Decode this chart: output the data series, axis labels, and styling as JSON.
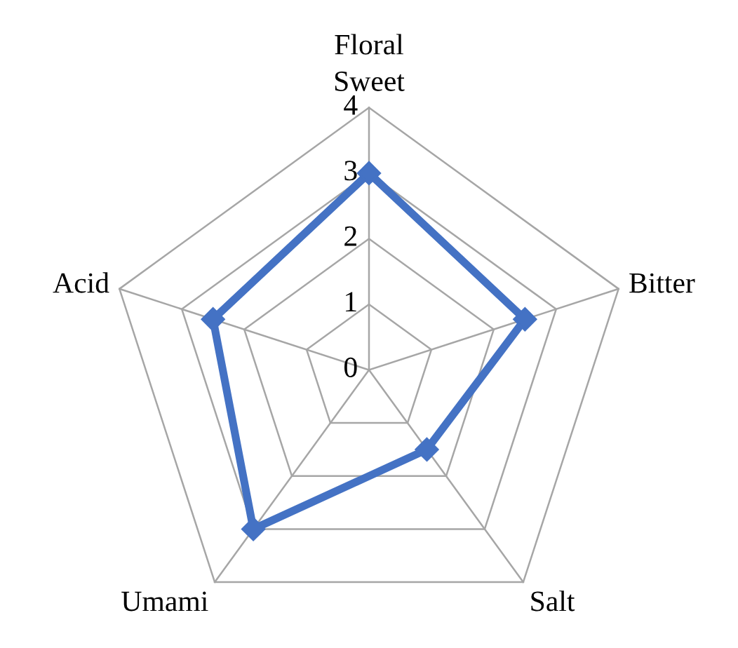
{
  "chart_data": {
    "type": "radar",
    "categories": [
      "Floral\nSweet",
      "Bitter",
      "Salt",
      "Umami",
      "Acid"
    ],
    "series": [
      {
        "color": "#4472c4",
        "values": [
          3,
          2.5,
          1.5,
          3,
          2.5
        ]
      }
    ],
    "ylim": [
      0,
      4
    ],
    "yticks": [
      0,
      1,
      2,
      3,
      4
    ],
    "grid": true,
    "marker": "diamond",
    "line_style": "solid",
    "legend": false
  }
}
